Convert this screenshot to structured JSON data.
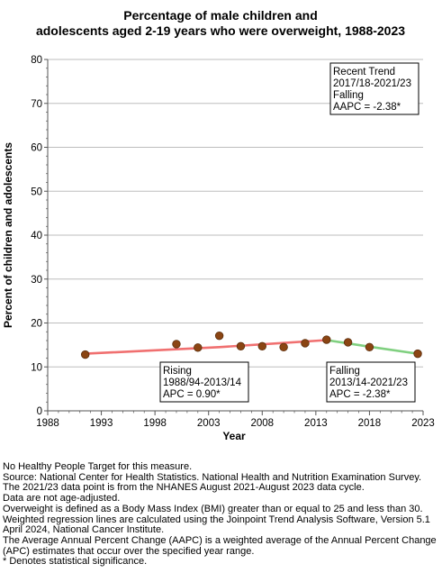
{
  "chart_data": {
    "type": "line",
    "title_lines": [
      "Percentage of male children and",
      "adolescents aged 2-19 years who were overweight, 1988-2023"
    ],
    "xlabel": "Year",
    "ylabel": "Percent of children and adolescents",
    "xlim": [
      1988,
      2023
    ],
    "ylim": [
      0,
      80
    ],
    "x_ticks": [
      "1988",
      "1993",
      "1998",
      "2003",
      "2008",
      "2013",
      "2018",
      "2023"
    ],
    "y_ticks": [
      "0",
      "10",
      "20",
      "30",
      "40",
      "50",
      "60",
      "70",
      "80"
    ],
    "grid": true,
    "observed": {
      "x": [
        1991.5,
        2000,
        2002,
        2004,
        2006,
        2008,
        2010,
        2012,
        2014,
        2016,
        2018,
        2022.5
      ],
      "y": [
        12.8,
        15.2,
        14.4,
        17.1,
        14.7,
        14.7,
        14.5,
        15.4,
        16.2,
        15.6,
        14.5,
        13.0
      ]
    },
    "trend_segments": [
      {
        "x": [
          1991.5,
          2004,
          2014
        ],
        "y": [
          13.0,
          14.5,
          16.1
        ],
        "color": "#f07070"
      },
      {
        "x": [
          2014,
          2018,
          2022.5
        ],
        "y": [
          16.1,
          14.6,
          13.0
        ],
        "color": "#80d080"
      }
    ],
    "annotations": [
      {
        "lines": [
          "Recent Trend",
          "2017/18-2021/23",
          "Falling",
          "AAPC = -2.38*"
        ]
      },
      {
        "lines": [
          "Rising",
          "1988/94-2013/14",
          "APC =  0.90*"
        ]
      },
      {
        "lines": [
          "Falling",
          "2013/14-2021/23",
          "APC = -2.38*"
        ]
      }
    ]
  },
  "footnotes": [
    "No Healthy People Target for this measure.",
    "Source: National Center for Health Statistics. National Health and Nutrition Examination Survey.",
    "The 2021/23 data point is from the NHANES August 2021-August 2023 data cycle.",
    "Data are not age-adjusted.",
    "Overweight is defined as a Body Mass Index (BMI) greater than or equal to 25 and less than 30.",
    "Weighted regression lines are calculated using the Joinpoint Trend Analysis Software, Version 5.1 April 2024, National Cancer Institute.",
    "The Average Annual Percent Change (AAPC) is a weighted average of the Annual Percent Change (APC) estimates that occur over the specified year range.",
    "* Denotes statistical significance."
  ],
  "colors": {
    "point_fill": "#8b4513",
    "point_stroke": "#5a2d0c",
    "grid": "#bdbdbd",
    "axis": "#555555"
  }
}
